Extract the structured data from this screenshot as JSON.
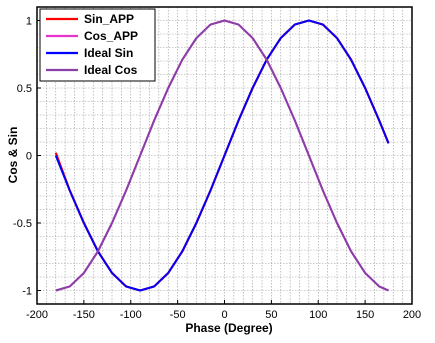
{
  "chart_data": {
    "type": "line",
    "title": "",
    "xlabel": "Phase (Degree)",
    "ylabel": "Cos & Sin",
    "xlim": [
      -200,
      200
    ],
    "ylim": [
      -1.1,
      1.1
    ],
    "x_ticks": [
      -200,
      -150,
      -100,
      -50,
      0,
      50,
      100,
      150,
      200
    ],
    "y_ticks": [
      -1,
      -0.5,
      0,
      0.5,
      1
    ],
    "x_tick_labels": [
      "-200",
      "-150",
      "-100",
      "-50",
      "0",
      "50",
      "100",
      "150",
      "200"
    ],
    "y_tick_labels": [
      "-1",
      "-0.5",
      "0",
      "0.5",
      "1"
    ],
    "grid": "on (dotted, minor)",
    "legend_position": "top-left",
    "x": [
      -180,
      -165,
      -150,
      -135,
      -120,
      -105,
      -90,
      -75,
      -60,
      -45,
      -30,
      -15,
      0,
      15,
      30,
      45,
      60,
      75,
      90,
      105,
      120,
      135,
      150,
      165,
      175
    ],
    "series": [
      {
        "name": "Sin_APP",
        "color": "#ff0000",
        "values": [
          0.02,
          -0.26,
          -0.5,
          -0.71,
          -0.87,
          -0.97,
          -1.0,
          -0.97,
          -0.87,
          -0.71,
          -0.5,
          -0.26,
          0.0,
          0.26,
          0.5,
          0.71,
          0.87,
          0.97,
          1.0,
          0.97,
          0.87,
          0.71,
          0.5,
          0.26,
          0.09
        ]
      },
      {
        "name": "Cos_APP",
        "color": "#e633cc",
        "values": [
          -1.0,
          -0.97,
          -0.87,
          -0.71,
          -0.5,
          -0.26,
          0.0,
          0.26,
          0.5,
          0.71,
          0.87,
          0.97,
          1.0,
          0.97,
          0.87,
          0.71,
          0.5,
          0.26,
          0.0,
          -0.26,
          -0.5,
          -0.71,
          -0.87,
          -0.97,
          -1.0
        ]
      },
      {
        "name": "Ideal Sin",
        "color": "#0000ff",
        "values": [
          0.0,
          -0.26,
          -0.5,
          -0.71,
          -0.87,
          -0.97,
          -1.0,
          -0.97,
          -0.87,
          -0.71,
          -0.5,
          -0.26,
          0.0,
          0.26,
          0.5,
          0.71,
          0.87,
          0.97,
          1.0,
          0.97,
          0.87,
          0.71,
          0.5,
          0.26,
          0.09
        ]
      },
      {
        "name": "Ideal Cos",
        "color": "#8a3fa8",
        "values": [
          -1.0,
          -0.97,
          -0.87,
          -0.71,
          -0.5,
          -0.26,
          0.0,
          0.26,
          0.5,
          0.71,
          0.87,
          0.97,
          1.0,
          0.97,
          0.87,
          0.71,
          0.5,
          0.26,
          0.0,
          -0.26,
          -0.5,
          -0.71,
          -0.87,
          -0.97,
          -1.0
        ]
      }
    ]
  }
}
